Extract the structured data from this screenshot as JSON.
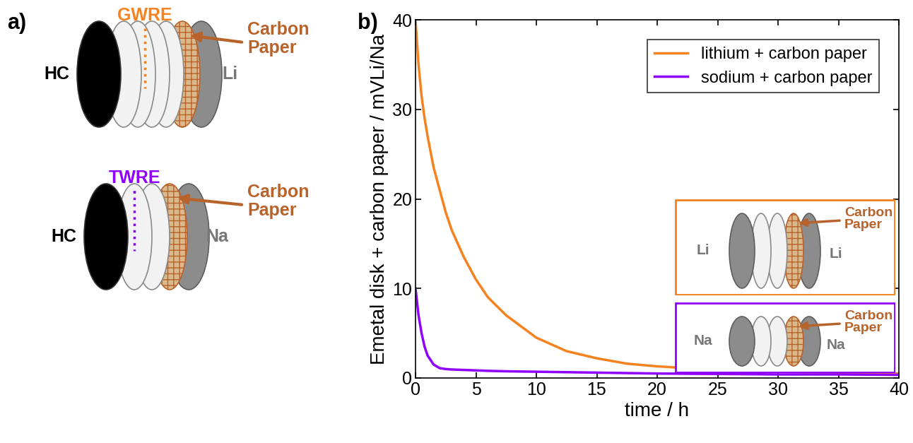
{
  "panels": {
    "a": {
      "label": "a)",
      "cells": [
        {
          "reference_electrode": "GWRE",
          "working": "HC",
          "counter": "Li",
          "interlayer": "Carbon Paper",
          "color": "#f5821f"
        },
        {
          "reference_electrode": "TWRE",
          "working": "HC",
          "counter": "Na",
          "interlayer": "Carbon Paper",
          "color": "#8f00ff"
        }
      ]
    },
    "b": {
      "label": "b)",
      "insets": [
        {
          "left": "Li",
          "right": "Li",
          "interlayer": "Carbon Paper",
          "color": "#f5821f"
        },
        {
          "left": "Na",
          "right": "Na",
          "interlayer": "Carbon Paper",
          "color": "#8f00ff"
        }
      ]
    }
  },
  "chart_data": {
    "type": "line",
    "xlabel": "time / h",
    "ylabel": "Emetal disk + carbon paper / mVLi/Na",
    "x": [
      0,
      0.25,
      0.5,
      0.75,
      1,
      1.5,
      2,
      2.5,
      3,
      4,
      5,
      6,
      7.5,
      10,
      12.5,
      15,
      17.5,
      20,
      25,
      30,
      35,
      40
    ],
    "series": [
      {
        "name": "lithium + carbon paper",
        "color": "#f5821f",
        "values": [
          40,
          35,
          31.5,
          29,
          27,
          23.5,
          21,
          18.5,
          16.5,
          13.5,
          11,
          9,
          7,
          4.5,
          3,
          2.2,
          1.6,
          1.3,
          0.9,
          0.7,
          0.6,
          0.5
        ]
      },
      {
        "name": "sodium + carbon paper",
        "color": "#8f00ff",
        "values": [
          10,
          7,
          5,
          3.5,
          2.5,
          1.5,
          1.1,
          1.0,
          0.95,
          0.9,
          0.85,
          0.8,
          0.75,
          0.7,
          0.65,
          0.6,
          0.55,
          0.5,
          0.45,
          0.4,
          0.4,
          0.35
        ]
      }
    ],
    "xlim": [
      0,
      40
    ],
    "ylim": [
      0,
      40
    ],
    "xticks": [
      0,
      5,
      10,
      15,
      20,
      25,
      30,
      35,
      40
    ],
    "yticks": [
      0,
      10,
      20,
      30,
      40
    ],
    "legend": "upper right",
    "grid": false
  }
}
